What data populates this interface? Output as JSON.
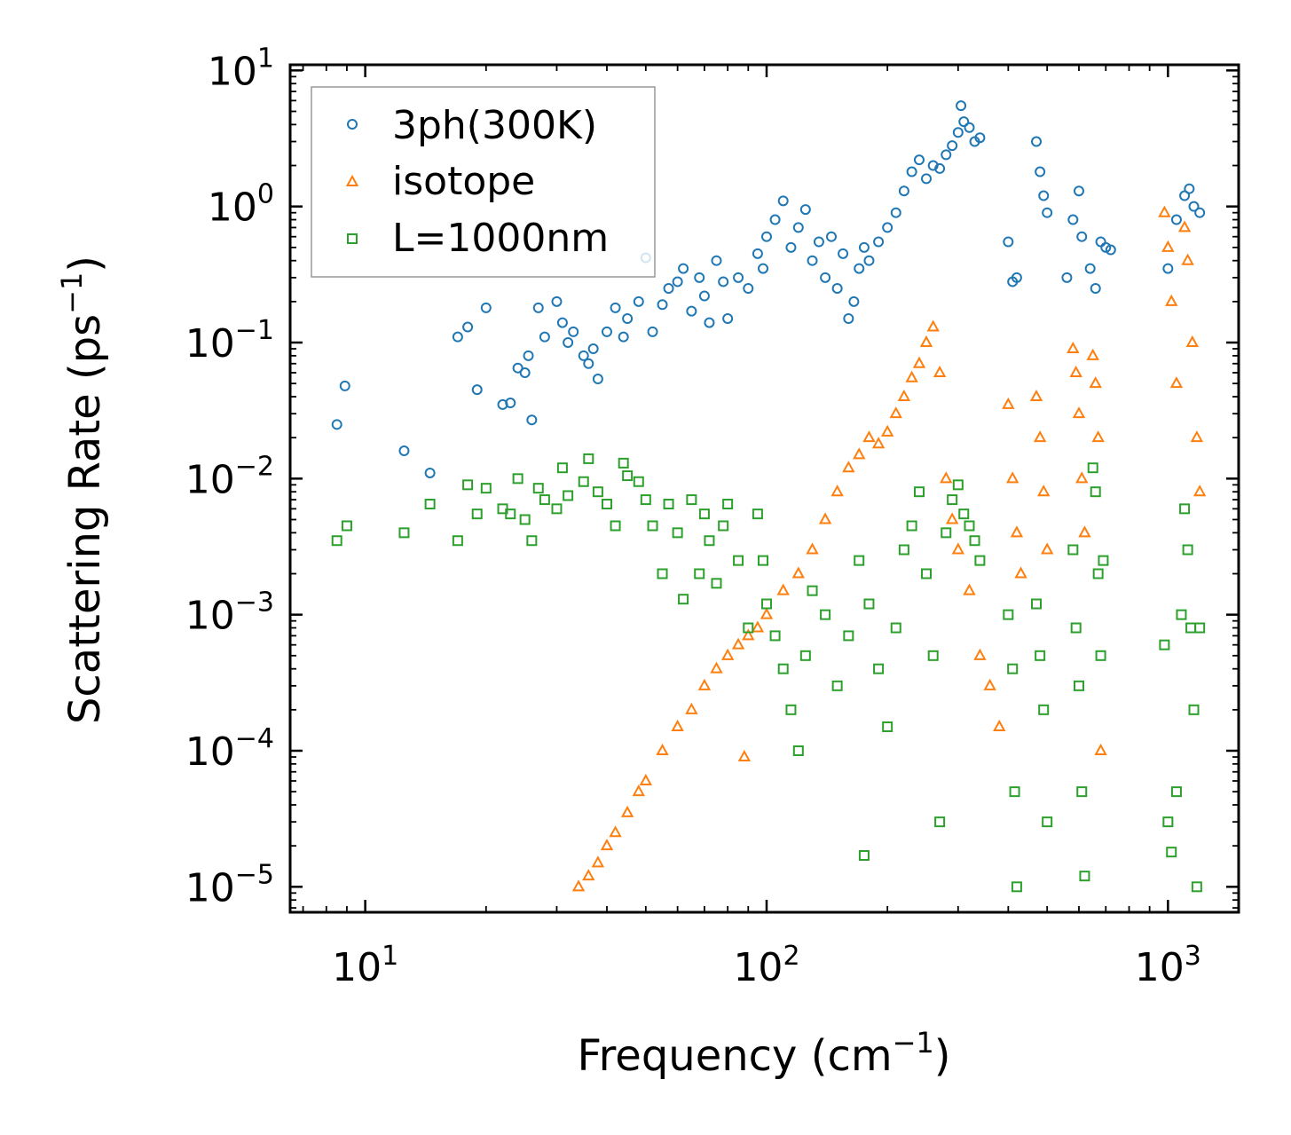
{
  "chart_data": {
    "type": "scatter",
    "xlabel": "Frequency (cm",
    "xlabel_sup": "−1",
    "xlabel_end": ")",
    "ylabel": "Scattering Rate (ps",
    "ylabel_sup": "−1",
    "ylabel_end": ")",
    "xscale": "log",
    "yscale": "log",
    "xlim": [
      6.5,
      1500
    ],
    "ylim": [
      6.5e-06,
      11
    ],
    "x_ticks": [
      {
        "value": 10,
        "base": "10",
        "exp": "1"
      },
      {
        "value": 100,
        "base": "10",
        "exp": "2"
      },
      {
        "value": 1000,
        "base": "10",
        "exp": "3"
      }
    ],
    "y_ticks": [
      {
        "value": 10,
        "base": "10",
        "exp": "1"
      },
      {
        "value": 1,
        "base": "10",
        "exp": "0"
      },
      {
        "value": 0.1,
        "base": "10",
        "exp": "−1"
      },
      {
        "value": 0.01,
        "base": "10",
        "exp": "−2"
      },
      {
        "value": 0.001,
        "base": "10",
        "exp": "−3"
      },
      {
        "value": 0.0001,
        "base": "10",
        "exp": "−4"
      },
      {
        "value": 1e-05,
        "base": "10",
        "exp": "−5"
      }
    ],
    "legend_position": "top-left",
    "series": [
      {
        "name": "3ph(300K)",
        "marker": "circle",
        "color": "#1f77b4",
        "points": [
          [
            8.5,
            0.025
          ],
          [
            8.9,
            0.048
          ],
          [
            12.5,
            0.016
          ],
          [
            14.5,
            0.011
          ],
          [
            17,
            0.11
          ],
          [
            18,
            0.13
          ],
          [
            19,
            0.045
          ],
          [
            20,
            0.18
          ],
          [
            22,
            0.035
          ],
          [
            23,
            0.036
          ],
          [
            24,
            0.065
          ],
          [
            25,
            0.06
          ],
          [
            25.5,
            0.08
          ],
          [
            26,
            0.027
          ],
          [
            27,
            0.18
          ],
          [
            28,
            0.11
          ],
          [
            30,
            0.2
          ],
          [
            31,
            0.14
          ],
          [
            32,
            0.1
          ],
          [
            33,
            0.12
          ],
          [
            35,
            0.08
          ],
          [
            36,
            0.07
          ],
          [
            37,
            0.09
          ],
          [
            38,
            0.054
          ],
          [
            40,
            0.12
          ],
          [
            42,
            0.18
          ],
          [
            44,
            0.11
          ],
          [
            45,
            0.15
          ],
          [
            48,
            0.2
          ],
          [
            50,
            0.42
          ],
          [
            52,
            0.12
          ],
          [
            55,
            0.19
          ],
          [
            57,
            0.25
          ],
          [
            60,
            0.28
          ],
          [
            62,
            0.35
          ],
          [
            65,
            0.17
          ],
          [
            68,
            0.3
          ],
          [
            70,
            0.22
          ],
          [
            72,
            0.14
          ],
          [
            75,
            0.4
          ],
          [
            78,
            0.28
          ],
          [
            80,
            0.15
          ],
          [
            85,
            0.3
          ],
          [
            90,
            0.25
          ],
          [
            95,
            0.45
          ],
          [
            98,
            0.35
          ],
          [
            100,
            0.6
          ],
          [
            105,
            0.8
          ],
          [
            110,
            1.1
          ],
          [
            115,
            0.5
          ],
          [
            120,
            0.7
          ],
          [
            125,
            0.95
          ],
          [
            130,
            0.4
          ],
          [
            135,
            0.55
          ],
          [
            140,
            0.3
          ],
          [
            145,
            0.6
          ],
          [
            150,
            0.25
          ],
          [
            155,
            0.45
          ],
          [
            160,
            0.15
          ],
          [
            165,
            0.2
          ],
          [
            170,
            0.35
          ],
          [
            175,
            0.5
          ],
          [
            180,
            0.4
          ],
          [
            190,
            0.55
          ],
          [
            200,
            0.7
          ],
          [
            210,
            0.9
          ],
          [
            220,
            1.3
          ],
          [
            230,
            1.8
          ],
          [
            240,
            2.2
          ],
          [
            250,
            1.6
          ],
          [
            260,
            2.0
          ],
          [
            270,
            1.9
          ],
          [
            280,
            2.4
          ],
          [
            290,
            2.8
          ],
          [
            300,
            3.5
          ],
          [
            305,
            5.5
          ],
          [
            310,
            4.2
          ],
          [
            320,
            3.8
          ],
          [
            330,
            3.0
          ],
          [
            340,
            3.2
          ],
          [
            400,
            0.55
          ],
          [
            410,
            0.28
          ],
          [
            420,
            0.3
          ],
          [
            470,
            3.0
          ],
          [
            480,
            1.8
          ],
          [
            490,
            1.2
          ],
          [
            500,
            0.9
          ],
          [
            560,
            0.3
          ],
          [
            580,
            0.8
          ],
          [
            600,
            1.3
          ],
          [
            610,
            0.6
          ],
          [
            640,
            0.35
          ],
          [
            660,
            0.25
          ],
          [
            680,
            0.55
          ],
          [
            700,
            0.5
          ],
          [
            720,
            0.48
          ],
          [
            1000,
            0.35
          ],
          [
            1050,
            0.8
          ],
          [
            1100,
            1.2
          ],
          [
            1130,
            1.35
          ],
          [
            1160,
            1.0
          ],
          [
            1200,
            0.9
          ]
        ]
      },
      {
        "name": "isotope",
        "marker": "triangle",
        "color": "#ff7f0e",
        "points": [
          [
            34,
            1e-05
          ],
          [
            36,
            1.2e-05
          ],
          [
            38,
            1.5e-05
          ],
          [
            40,
            2e-05
          ],
          [
            42,
            2.5e-05
          ],
          [
            45,
            3.5e-05
          ],
          [
            48,
            5e-05
          ],
          [
            50,
            6e-05
          ],
          [
            55,
            0.0001
          ],
          [
            60,
            0.00015
          ],
          [
            65,
            0.0002
          ],
          [
            70,
            0.0003
          ],
          [
            75,
            0.0004
          ],
          [
            80,
            0.0005
          ],
          [
            85,
            0.0006
          ],
          [
            88,
            9e-05
          ],
          [
            90,
            0.0007
          ],
          [
            95,
            0.0008
          ],
          [
            100,
            0.001
          ],
          [
            110,
            0.0015
          ],
          [
            120,
            0.002
          ],
          [
            130,
            0.003
          ],
          [
            140,
            0.005
          ],
          [
            150,
            0.008
          ],
          [
            160,
            0.012
          ],
          [
            170,
            0.015
          ],
          [
            180,
            0.02
          ],
          [
            190,
            0.018
          ],
          [
            200,
            0.022
          ],
          [
            210,
            0.03
          ],
          [
            220,
            0.04
          ],
          [
            230,
            0.055
          ],
          [
            240,
            0.07
          ],
          [
            250,
            0.1
          ],
          [
            260,
            0.13
          ],
          [
            270,
            0.06
          ],
          [
            280,
            0.01
          ],
          [
            290,
            0.005
          ],
          [
            300,
            0.003
          ],
          [
            320,
            0.0015
          ],
          [
            340,
            0.0005
          ],
          [
            360,
            0.0003
          ],
          [
            380,
            0.00015
          ],
          [
            400,
            0.035
          ],
          [
            410,
            0.01
          ],
          [
            420,
            0.004
          ],
          [
            430,
            0.002
          ],
          [
            470,
            0.04
          ],
          [
            480,
            0.02
          ],
          [
            490,
            0.008
          ],
          [
            500,
            0.003
          ],
          [
            580,
            0.09
          ],
          [
            590,
            0.06
          ],
          [
            600,
            0.03
          ],
          [
            610,
            0.01
          ],
          [
            620,
            0.004
          ],
          [
            650,
            0.08
          ],
          [
            660,
            0.05
          ],
          [
            670,
            0.02
          ],
          [
            680,
            0.0001
          ],
          [
            980,
            0.9
          ],
          [
            1000,
            0.5
          ],
          [
            1020,
            0.2
          ],
          [
            1050,
            0.05
          ],
          [
            1100,
            0.7
          ],
          [
            1120,
            0.4
          ],
          [
            1150,
            0.1
          ],
          [
            1180,
            0.02
          ],
          [
            1200,
            0.008
          ]
        ]
      },
      {
        "name": "L=1000nm",
        "marker": "square",
        "color": "#2ca02c",
        "points": [
          [
            8.5,
            0.0035
          ],
          [
            9,
            0.0045
          ],
          [
            12.5,
            0.004
          ],
          [
            14.5,
            0.0065
          ],
          [
            17,
            0.0035
          ],
          [
            18,
            0.009
          ],
          [
            19,
            0.0055
          ],
          [
            20,
            0.0085
          ],
          [
            22,
            0.006
          ],
          [
            23,
            0.0055
          ],
          [
            24,
            0.01
          ],
          [
            25,
            0.005
          ],
          [
            26,
            0.0035
          ],
          [
            27,
            0.0085
          ],
          [
            28,
            0.007
          ],
          [
            30,
            0.006
          ],
          [
            31,
            0.012
          ],
          [
            32,
            0.0075
          ],
          [
            35,
            0.0095
          ],
          [
            36,
            0.014
          ],
          [
            38,
            0.008
          ],
          [
            40,
            0.0065
          ],
          [
            42,
            0.0045
          ],
          [
            44,
            0.013
          ],
          [
            45,
            0.0105
          ],
          [
            48,
            0.0095
          ],
          [
            50,
            0.007
          ],
          [
            52,
            0.0045
          ],
          [
            55,
            0.002
          ],
          [
            57,
            0.0065
          ],
          [
            60,
            0.004
          ],
          [
            62,
            0.0013
          ],
          [
            65,
            0.007
          ],
          [
            68,
            0.002
          ],
          [
            70,
            0.0055
          ],
          [
            72,
            0.0035
          ],
          [
            75,
            0.0017
          ],
          [
            78,
            0.0045
          ],
          [
            80,
            0.0065
          ],
          [
            85,
            0.0025
          ],
          [
            90,
            0.0008
          ],
          [
            95,
            0.0055
          ],
          [
            98,
            0.0025
          ],
          [
            100,
            0.0012
          ],
          [
            105,
            0.0007
          ],
          [
            110,
            0.0004
          ],
          [
            115,
            0.0002
          ],
          [
            120,
            0.0001
          ],
          [
            125,
            0.0005
          ],
          [
            130,
            0.0015
          ],
          [
            140,
            0.001
          ],
          [
            150,
            0.0003
          ],
          [
            160,
            0.0007
          ],
          [
            170,
            0.0025
          ],
          [
            175,
            1.7e-05
          ],
          [
            180,
            0.0012
          ],
          [
            190,
            0.0004
          ],
          [
            200,
            0.00015
          ],
          [
            210,
            0.0008
          ],
          [
            220,
            0.003
          ],
          [
            230,
            0.0045
          ],
          [
            240,
            0.008
          ],
          [
            250,
            0.002
          ],
          [
            260,
            0.0005
          ],
          [
            270,
            3e-05
          ],
          [
            280,
            0.004
          ],
          [
            290,
            0.007
          ],
          [
            300,
            0.009
          ],
          [
            310,
            0.0055
          ],
          [
            320,
            0.0045
          ],
          [
            330,
            0.0035
          ],
          [
            340,
            0.0025
          ],
          [
            400,
            0.001
          ],
          [
            410,
            0.0004
          ],
          [
            415,
            5e-05
          ],
          [
            420,
            1e-05
          ],
          [
            470,
            0.0012
          ],
          [
            480,
            0.0005
          ],
          [
            490,
            0.0002
          ],
          [
            500,
            3e-05
          ],
          [
            580,
            0.003
          ],
          [
            590,
            0.0008
          ],
          [
            600,
            0.0003
          ],
          [
            610,
            5e-05
          ],
          [
            620,
            1.2e-05
          ],
          [
            650,
            0.012
          ],
          [
            660,
            0.008
          ],
          [
            670,
            0.002
          ],
          [
            680,
            0.0005
          ],
          [
            690,
            0.0025
          ],
          [
            980,
            0.0006
          ],
          [
            1000,
            3e-05
          ],
          [
            1020,
            1.8e-05
          ],
          [
            1050,
            5e-05
          ],
          [
            1080,
            0.001
          ],
          [
            1100,
            0.006
          ],
          [
            1120,
            0.003
          ],
          [
            1140,
            0.0008
          ],
          [
            1160,
            0.0002
          ],
          [
            1180,
            1e-05
          ],
          [
            1200,
            0.0008
          ]
        ]
      }
    ]
  }
}
